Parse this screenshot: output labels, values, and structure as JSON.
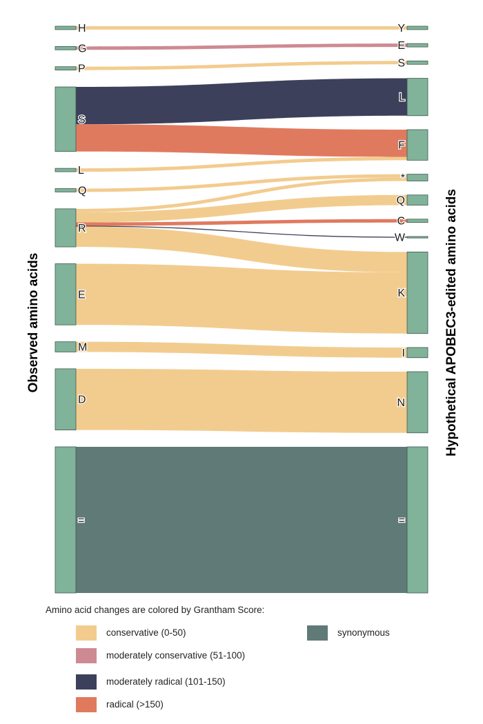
{
  "chart_data": {
    "type": "sankey",
    "left_title": "Observed amino acids",
    "right_title": "Hypothetical APOBEC3-edited amino acids",
    "colors": {
      "conservative": "#f2cc8f",
      "moderately_conservative": "#ce8a92",
      "moderately_radical": "#3d405b",
      "radical": "#e07a5f",
      "synonymous": "#5f7a77",
      "node": "#81b29a"
    },
    "left_nodes": [
      "H",
      "G",
      "P",
      "S",
      "L",
      "Q",
      "R",
      "E",
      "M",
      "D",
      "="
    ],
    "right_nodes": [
      "Y",
      "E",
      "S",
      "L",
      "F",
      "*",
      "Q",
      "C",
      "W",
      "K",
      "I",
      "N",
      "="
    ],
    "flows": [
      {
        "source": "H",
        "target": "Y",
        "value": 1,
        "category": "conservative"
      },
      {
        "source": "G",
        "target": "E",
        "value": 1,
        "category": "moderately_conservative"
      },
      {
        "source": "P",
        "target": "S",
        "value": 1,
        "category": "conservative"
      },
      {
        "source": "S",
        "target": "L",
        "value": 11,
        "category": "moderately_radical"
      },
      {
        "source": "S",
        "target": "F",
        "value": 8,
        "category": "radical"
      },
      {
        "source": "L",
        "target": "F",
        "value": 1,
        "category": "conservative"
      },
      {
        "source": "Q",
        "target": "*",
        "value": 1,
        "category": "conservative"
      },
      {
        "source": "R",
        "target": "*",
        "value": 1,
        "category": "conservative"
      },
      {
        "source": "R",
        "target": "Q",
        "value": 3,
        "category": "conservative"
      },
      {
        "source": "R",
        "target": "C",
        "value": 1,
        "category": "radical"
      },
      {
        "source": "R",
        "target": "W",
        "value": 0.2,
        "category": "moderately_radical"
      },
      {
        "source": "R",
        "target": "K",
        "value": 6,
        "category": "conservative"
      },
      {
        "source": "E",
        "target": "K",
        "value": 18,
        "category": "conservative"
      },
      {
        "source": "M",
        "target": "I",
        "value": 3,
        "category": "conservative"
      },
      {
        "source": "D",
        "target": "N",
        "value": 18,
        "category": "conservative"
      },
      {
        "source": "=",
        "target": "=",
        "value": 43,
        "category": "synonymous"
      }
    ]
  },
  "legend": {
    "title": "Amino acid changes are colored by Grantham Score:",
    "items": [
      {
        "key": "conservative",
        "label": "conservative (0-50)"
      },
      {
        "key": "moderately_conservative",
        "label": "moderately conservative (51-100)"
      },
      {
        "key": "moderately_radical",
        "label": "moderately radical (101-150)"
      },
      {
        "key": "radical",
        "label": "radical (>150)"
      },
      {
        "key": "synonymous",
        "label": "synonymous"
      }
    ]
  }
}
